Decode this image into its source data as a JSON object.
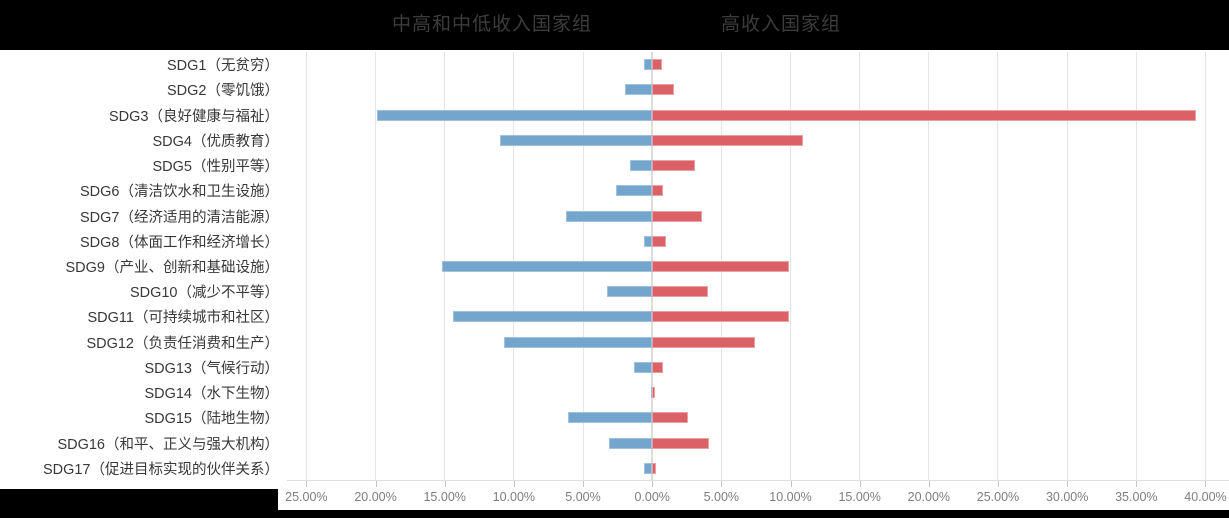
{
  "chart_data": {
    "type": "bar",
    "variant": "diverging-horizontal",
    "title": "",
    "categories": [
      "SDG1（无贫穷）",
      "SDG2（零饥饿）",
      "SDG3（良好健康与福祉）",
      "SDG4（优质教育）",
      "SDG5（性别平等）",
      "SDG6（清洁饮水和卫生设施）",
      "SDG7（经济适用的清洁能源）",
      "SDG8（体面工作和经济增长）",
      "SDG9（产业、创新和基础设施）",
      "SDG10（减少不平等）",
      "SDG11（可持续城市和社区）",
      "SDG12（负责任消费和生产）",
      "SDG13（气候行动）",
      "SDG14（水下生物）",
      "SDG15（陆地生物）",
      "SDG16（和平、正义与强大机构）",
      "SDG17（促进目标实现的伙伴关系）"
    ],
    "series": [
      {
        "name": "中高和中低收入国家组",
        "side": "left",
        "color": "#74a6cd",
        "border_color": "#9fc2dd",
        "values": [
          0.6,
          2.0,
          19.9,
          11.0,
          1.6,
          2.6,
          6.2,
          0.6,
          15.2,
          3.3,
          14.4,
          10.7,
          1.3,
          0.1,
          6.1,
          3.1,
          0.6
        ]
      },
      {
        "name": "高收入国家组",
        "side": "right",
        "color": "#db6166",
        "border_color": "#e8a1a4",
        "values": [
          0.7,
          1.6,
          39.3,
          10.9,
          3.1,
          0.8,
          3.6,
          1.0,
          9.9,
          4.0,
          9.9,
          7.4,
          0.8,
          0.2,
          2.6,
          4.1,
          0.3
        ]
      }
    ],
    "x_axis": {
      "unit": "%",
      "tick_labels": [
        "25.00%",
        "20.00%",
        "15.00%",
        "10.00%",
        "5.00%",
        "0.00%",
        "5.00%",
        "10.00%",
        "15.00%",
        "20.00%",
        "25.00%",
        "30.00%",
        "35.00%",
        "40.00%"
      ],
      "tick_values": [
        -25,
        -20,
        -15,
        -10,
        -5,
        0,
        5,
        10,
        15,
        20,
        25,
        30,
        35,
        40
      ],
      "xlim": [
        -26.4,
        41.7
      ],
      "grid": true
    },
    "legend_position": "top",
    "frame_color": "#000000",
    "gridline_color": "#e4e4e4",
    "tick_label_color": "#7e7e7e",
    "category_label_color": "#383838",
    "legend_text_color": "#3c3c3c"
  }
}
